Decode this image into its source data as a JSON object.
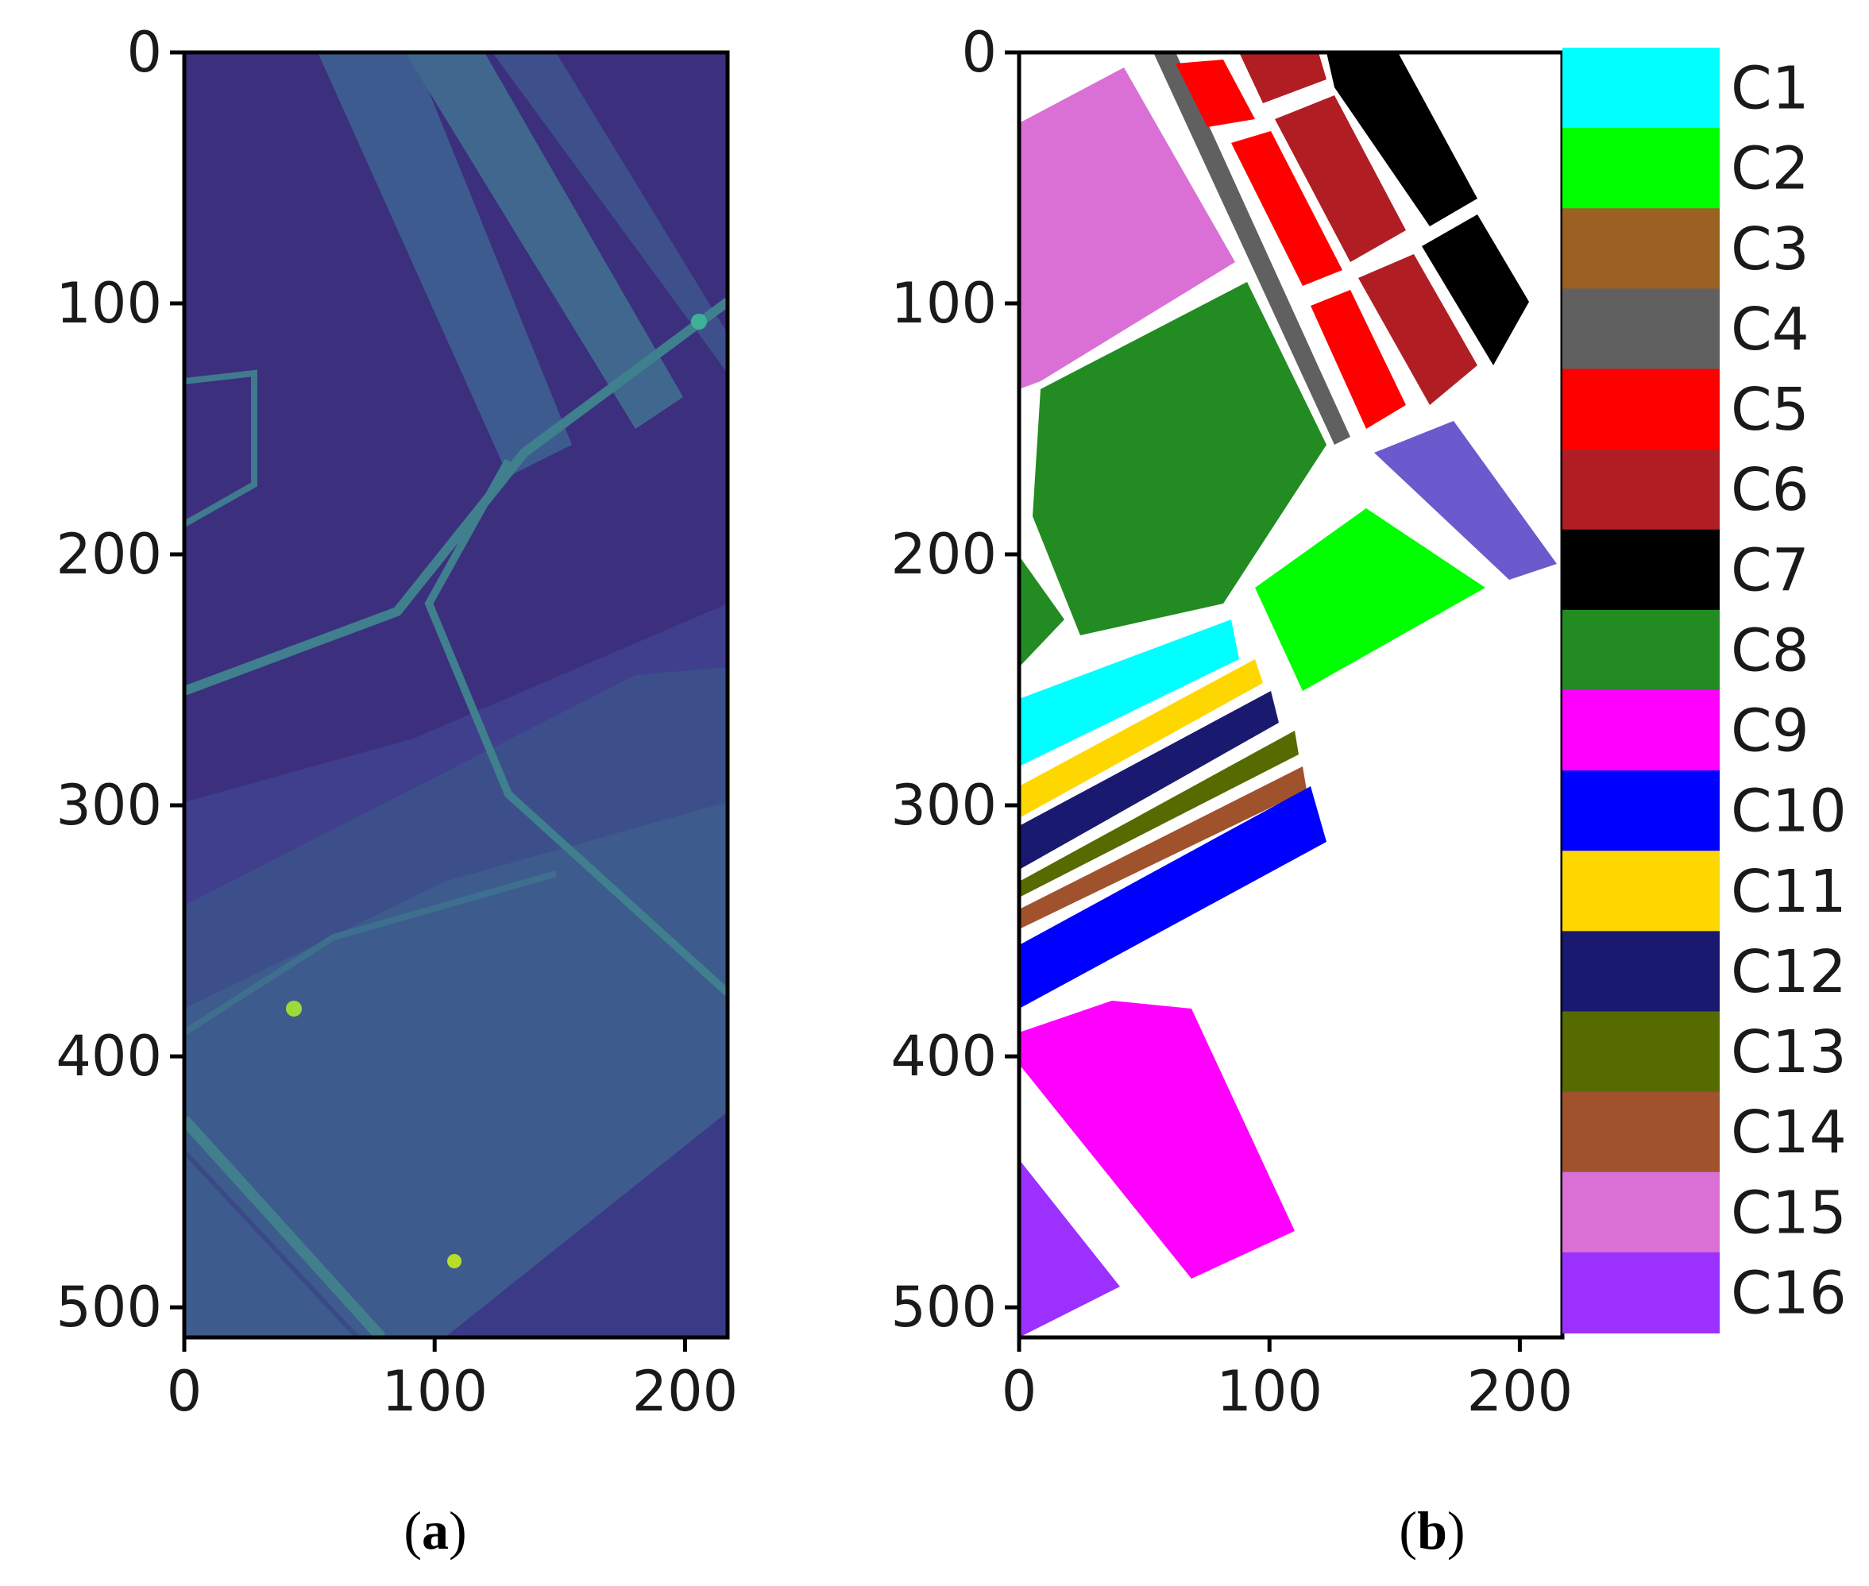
{
  "chart_data": [
    {
      "type": "heatmap",
      "panel_label": "(a)",
      "panel_label_letter": "a",
      "colormap": "viridis",
      "xlim": [
        0,
        217
      ],
      "ylim": [
        512,
        0
      ],
      "xticks": [
        0,
        100,
        200
      ],
      "yticks": [
        0,
        100,
        200,
        300,
        400,
        500
      ],
      "grid": false
    },
    {
      "type": "heatmap",
      "panel_label": "(b)",
      "panel_label_letter": "b",
      "xlim": [
        0,
        217
      ],
      "ylim": [
        512,
        0
      ],
      "xticks": [
        0,
        100,
        200
      ],
      "yticks": [
        0,
        100,
        200,
        300,
        400,
        500
      ],
      "grid": false,
      "legend_position": "right",
      "classes": [
        {
          "label": "C1",
          "color": "#00FFFF"
        },
        {
          "label": "C2",
          "color": "#00FF00"
        },
        {
          "label": "C3",
          "color": "#9A6122"
        },
        {
          "label": "C4",
          "color": "#606060"
        },
        {
          "label": "C5",
          "color": "#FF0000"
        },
        {
          "label": "C6",
          "color": "#B01E23"
        },
        {
          "label": "C7",
          "color": "#000000"
        },
        {
          "label": "C8",
          "color": "#228B22"
        },
        {
          "label": "C9",
          "color": "#FF00FF"
        },
        {
          "label": "C10",
          "color": "#0000FF"
        },
        {
          "label": "C11",
          "color": "#FFD700"
        },
        {
          "label": "C12",
          "color": "#191970"
        },
        {
          "label": "C13",
          "color": "#556B00"
        },
        {
          "label": "C14",
          "color": "#A0522D"
        },
        {
          "label": "C15",
          "color": "#DA70D6"
        },
        {
          "label": "C16",
          "color": "#9B30FF"
        }
      ]
    }
  ]
}
